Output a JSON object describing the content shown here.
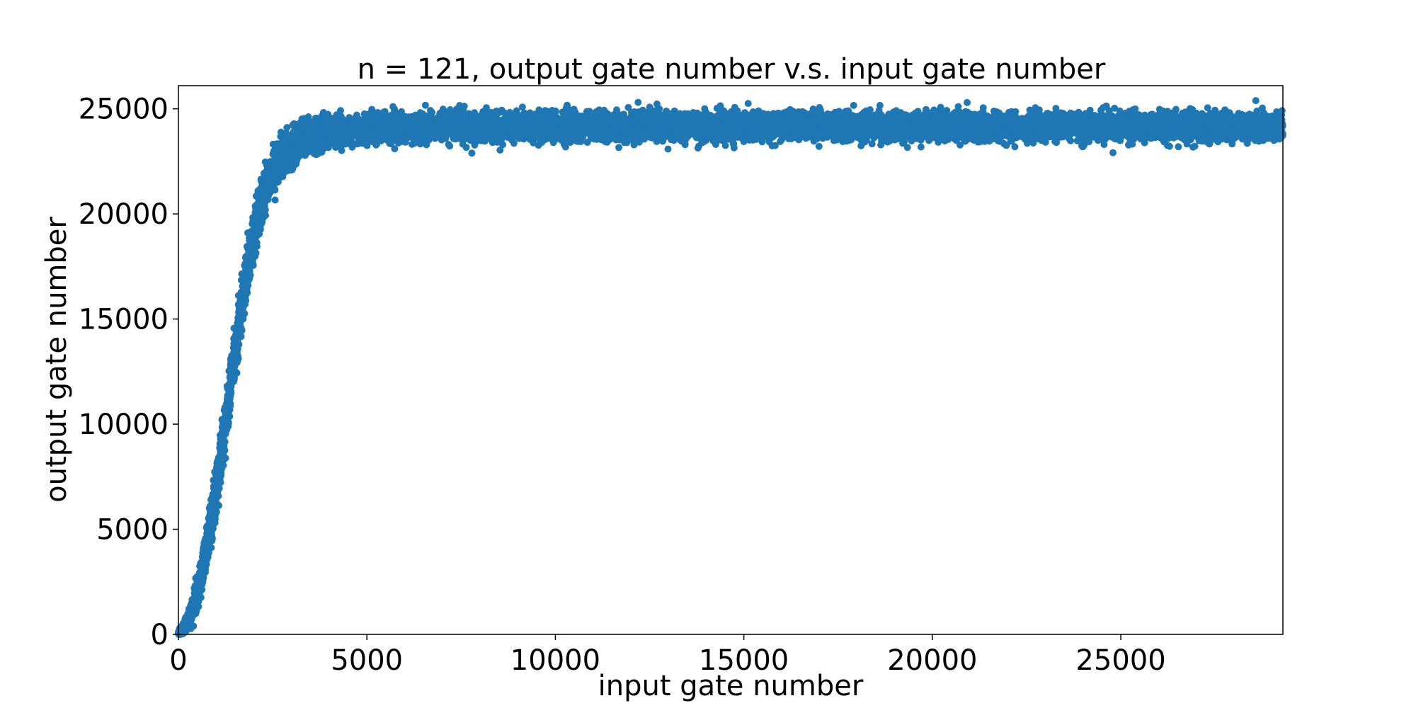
{
  "chart_data": {
    "type": "scatter",
    "title": "n = 121, output gate number v.s. input gate number",
    "xlabel": "input gate number",
    "ylabel": "output gate number",
    "xlim": [
      0,
      29300
    ],
    "ylim": [
      0,
      26100
    ],
    "xticks": [
      {
        "value": 0,
        "label": "0"
      },
      {
        "value": 5000,
        "label": "5000"
      },
      {
        "value": 10000,
        "label": "10000"
      },
      {
        "value": 15000,
        "label": "15000"
      },
      {
        "value": 20000,
        "label": "20000"
      },
      {
        "value": 25000,
        "label": "25000"
      }
    ],
    "yticks": [
      {
        "value": 0,
        "label": "0"
      },
      {
        "value": 5000,
        "label": "5000"
      },
      {
        "value": 10000,
        "label": "10000"
      },
      {
        "value": 15000,
        "label": "15000"
      },
      {
        "value": 20000,
        "label": "20000"
      },
      {
        "value": 25000,
        "label": "25000"
      }
    ],
    "grid": false,
    "marker_color": "#1f77b4",
    "series": [
      {
        "x": [
          0,
          150,
          300,
          450,
          600,
          750,
          900,
          1050,
          1200,
          1350,
          1500,
          1650,
          1800,
          1950,
          2100,
          2250,
          2400,
          2600,
          2800,
          3000,
          3200,
          3400,
          3600,
          3800,
          4000,
          4300,
          4600,
          5000,
          5500,
          6000,
          6500,
          7000,
          7500,
          8000,
          8500,
          9000,
          9500,
          10000,
          11000,
          12000,
          13000,
          14000,
          15000,
          16000,
          17000,
          18000,
          19000,
          20000,
          21000,
          22000,
          23000,
          24000,
          25000,
          26000,
          27000,
          28000,
          29000
        ],
        "y": [
          0,
          300,
          800,
          1600,
          2700,
          4100,
          5700,
          7500,
          9400,
          11400,
          13400,
          15300,
          17000,
          18500,
          19800,
          20800,
          21600,
          22300,
          22800,
          23100,
          23400,
          23600,
          23700,
          23800,
          23900,
          23950,
          24000,
          24050,
          24100,
          24100,
          24100,
          24150,
          24150,
          24150,
          24150,
          24150,
          24150,
          24150,
          24150,
          24150,
          24150,
          24150,
          24150,
          24150,
          24150,
          24150,
          24150,
          24150,
          24150,
          24150,
          24150,
          24150,
          24150,
          24150,
          24150,
          24150,
          24150
        ],
        "spread": [
          150,
          250,
          400,
          550,
          700,
          800,
          900,
          950,
          1000,
          1000,
          1000,
          1000,
          1000,
          950,
          900,
          850,
          800,
          750,
          700,
          650,
          600,
          600,
          600,
          600,
          600,
          600,
          600,
          600,
          600,
          600,
          600,
          600,
          600,
          600,
          600,
          600,
          600,
          600,
          600,
          600,
          600,
          600,
          600,
          600,
          600,
          600,
          600,
          600,
          600,
          600,
          600,
          600,
          600,
          600,
          600,
          600,
          600
        ]
      }
    ]
  }
}
